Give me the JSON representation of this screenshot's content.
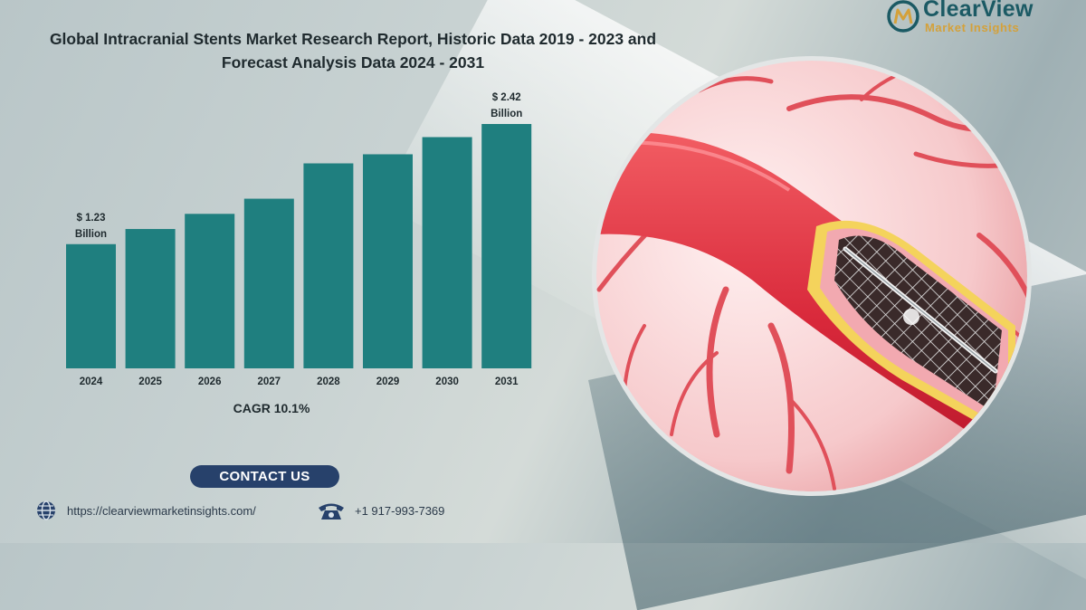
{
  "header": {
    "title_line1": "Global Intracranial Stents Market Research Report, Historic Data 2019 - 2023 and",
    "title_line2": "Forecast Analysis Data 2024 - 2031"
  },
  "logo": {
    "name": "ClearView",
    "subtitle": "Market Insights",
    "mark_letters": "CM",
    "colors": {
      "name": "#1b5a64",
      "subtitle": "#d4a13a"
    }
  },
  "chart_data": {
    "type": "bar",
    "title": "Global Intracranial Stents Market Research Report, Historic Data 2019 - 2023 and Forecast Analysis Data 2024 - 2031",
    "xlabel": "",
    "ylabel": "",
    "categories": [
      "2024",
      "2025",
      "2026",
      "2027",
      "2028",
      "2029",
      "2030",
      "2031"
    ],
    "values": [
      1.23,
      1.38,
      1.53,
      1.68,
      2.03,
      2.12,
      2.29,
      2.42
    ],
    "unit": "Billion",
    "ylim": [
      0,
      2.5
    ],
    "grid": false,
    "legend": "none",
    "bar_color": "#1f7f7f",
    "data_labels": [
      {
        "index": 0,
        "line1": "$ 1.23",
        "line2": "Billion"
      },
      {
        "index": 7,
        "line1": "$ 2.42",
        "line2": "Billion"
      }
    ]
  },
  "cagr_label": "CAGR 10.1%",
  "contact": {
    "button_label": "CONTACT US",
    "website": "https://clearviewmarketinsights.com/",
    "phone": "+1 917-993-7369",
    "icons": {
      "website": "globe-icon",
      "phone": "telephone-icon"
    }
  },
  "illustration": {
    "icon": "artery-stent-illustration"
  }
}
